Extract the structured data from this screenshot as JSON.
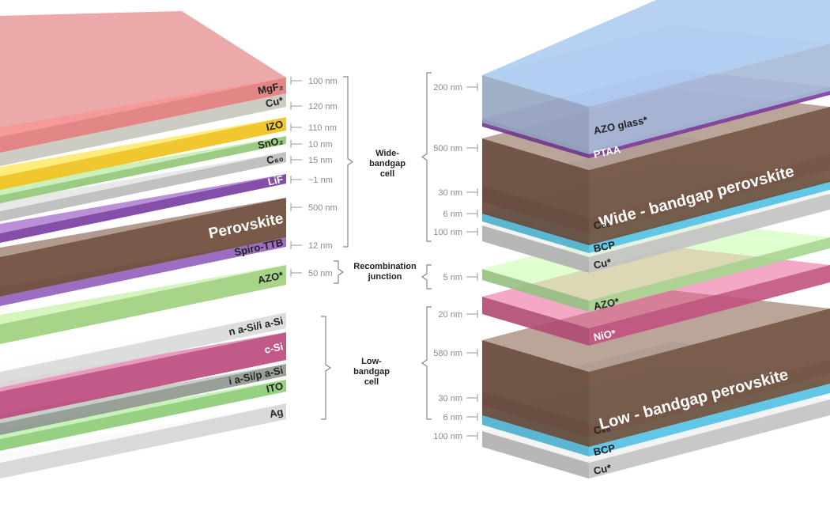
{
  "left_stack": {
    "layers": [
      {
        "label": "MgF₂",
        "color": "#e07c7c",
        "text_color": "#222"
      },
      {
        "label": "Cu*",
        "color": "#c9c8bd",
        "text_color": "#222"
      },
      {
        "label": "IZO",
        "color": "#f0c21e",
        "text_color": "#222"
      },
      {
        "label": "SnO₂",
        "color": "#94c878",
        "text_color": "#222"
      },
      {
        "label": "C₆₀",
        "color": "#bcbcbc",
        "text_color": "#222"
      },
      {
        "label": "LiF",
        "color": "#7a3fa2",
        "text_color": "#fff"
      },
      {
        "label": "Perovskite",
        "color": "#6e4c3a",
        "text_color": "#fff"
      },
      {
        "label": "Spiro-TTB",
        "color": "#9462bc",
        "text_color": "#222"
      },
      {
        "label": "AZO*",
        "color": "#9fd07e",
        "text_color": "#222"
      },
      {
        "label": "n a-Si/i a-Si",
        "color": "#dadada",
        "text_color": "#222"
      },
      {
        "label": "c-Si",
        "color": "#bc4c7e",
        "text_color": "#fff"
      },
      {
        "label": "i a-Si/p a-Si",
        "color": "#8f988f",
        "text_color": "#222"
      },
      {
        "label": "ITO",
        "color": "#8ccc78",
        "text_color": "#222"
      },
      {
        "label": "Ag",
        "color": "#d6d6d6",
        "text_color": "#222"
      }
    ],
    "thicknesses": [
      "100 nm",
      "120 nm",
      "110 nm",
      "10 nm",
      "15 nm",
      "~1 nm",
      "500 nm",
      "12 nm",
      "50 nm"
    ]
  },
  "groups": {
    "wide": "Wide-\nbandgap\ncell",
    "recombination": "Recombination\njunction",
    "low": "Low-\nbandgap\ncell"
  },
  "right_stack": {
    "layers": [
      {
        "label": "AZO glass*",
        "color": "#a6bad6",
        "text_color": "#222"
      },
      {
        "label": "PTAA",
        "color": "#7c3c9c",
        "text_color": "#fff"
      },
      {
        "label": "Wide - bandgap perovskite",
        "color": "#6e4c3a",
        "text_color": "#fff"
      },
      {
        "label": "C₆₀",
        "color": "#b6bcc2",
        "text_color": "#222"
      },
      {
        "label": "BCP",
        "color": "#52c2e4",
        "text_color": "#222"
      },
      {
        "label": "Cu*",
        "color": "#c2c2c2",
        "text_color": "#222"
      },
      {
        "label": "AZO*",
        "color": "#a6d68e",
        "text_color": "#222"
      },
      {
        "label": "NiO*",
        "color": "#c2527f",
        "text_color": "#fff"
      },
      {
        "label": "Low - bandgap perovskite",
        "color": "#6e4c3a",
        "text_color": "#fff"
      },
      {
        "label": "C₆₀",
        "color": "#b6bcc2",
        "text_color": "#222"
      },
      {
        "label": "BCP",
        "color": "#52c2e4",
        "text_color": "#222"
      },
      {
        "label": "Cu*",
        "color": "#c2c2c2",
        "text_color": "#222"
      }
    ],
    "thicknesses": [
      "200 nm",
      "500 nm",
      "30 nm",
      "6 nm",
      "100 nm",
      "5 nm",
      "20 nm",
      "580 nm",
      "30 nm",
      "6 nm",
      "100 nm"
    ]
  }
}
